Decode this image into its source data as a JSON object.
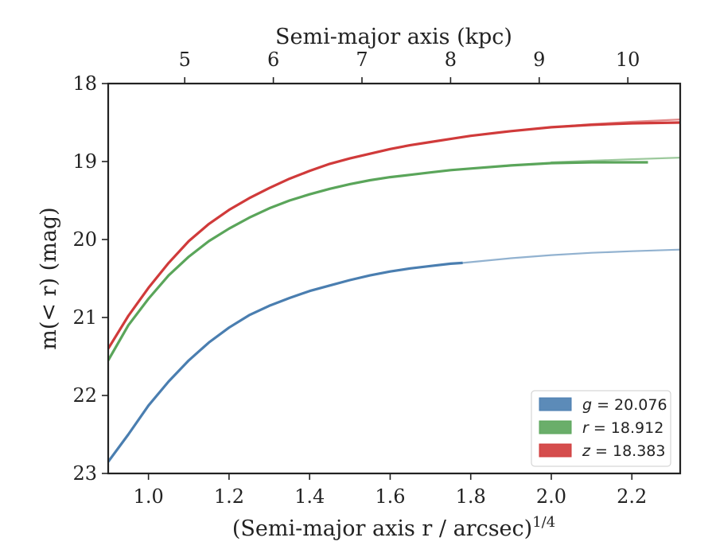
{
  "chart_data": {
    "type": "line",
    "xlabel": "(Semi-major axis r / arcsec)",
    "xlabel_exponent": "1/4",
    "x2label": "Semi-major axis (kpc)",
    "ylabel": "m(< r) (mag)",
    "xlim": [
      0.9,
      2.32
    ],
    "ylim": [
      23,
      18
    ],
    "y_inverted": true,
    "grid": false,
    "legend_position": "lower-right",
    "xticks": [
      1.0,
      1.2,
      1.4,
      1.6,
      1.8,
      2.0,
      2.2
    ],
    "xtick_labels": [
      "1.0",
      "1.2",
      "1.4",
      "1.6",
      "1.8",
      "2.0",
      "2.2"
    ],
    "yticks": [
      18,
      19,
      20,
      21,
      22,
      23
    ],
    "ytick_labels": [
      "18",
      "19",
      "20",
      "21",
      "22",
      "23"
    ],
    "x2_ticks": [
      {
        "label": "5",
        "x": 1.09
      },
      {
        "label": "6",
        "x": 1.31
      },
      {
        "label": "7",
        "x": 1.53
      },
      {
        "label": "8",
        "x": 1.75
      },
      {
        "label": "9",
        "x": 1.97
      },
      {
        "label": "10",
        "x": 2.19
      }
    ],
    "series": [
      {
        "name": "g = 20.076",
        "band": "g",
        "mag": "20.076",
        "color": "#4a7eb0",
        "x": [
          0.9,
          0.95,
          1.0,
          1.05,
          1.1,
          1.15,
          1.2,
          1.25,
          1.3,
          1.35,
          1.4,
          1.45,
          1.5,
          1.55,
          1.6,
          1.65,
          1.7,
          1.75,
          1.78
        ],
        "y": [
          22.85,
          22.5,
          22.13,
          21.82,
          21.55,
          21.32,
          21.13,
          20.97,
          20.85,
          20.75,
          20.66,
          20.59,
          20.52,
          20.46,
          20.41,
          20.37,
          20.34,
          20.31,
          20.3
        ],
        "extrap_x": [
          1.78,
          1.9,
          2.0,
          2.1,
          2.2,
          2.32
        ],
        "extrap_y": [
          20.3,
          20.24,
          20.2,
          20.17,
          20.15,
          20.13
        ]
      },
      {
        "name": "r = 18.912",
        "band": "r",
        "mag": "18.912",
        "color": "#5aa55a",
        "x": [
          0.9,
          0.95,
          1.0,
          1.05,
          1.1,
          1.15,
          1.2,
          1.25,
          1.3,
          1.35,
          1.4,
          1.45,
          1.5,
          1.55,
          1.6,
          1.65,
          1.7,
          1.75,
          1.8,
          1.9,
          2.0,
          2.1,
          2.2,
          2.24
        ],
        "y": [
          21.55,
          21.1,
          20.76,
          20.46,
          20.22,
          20.02,
          19.86,
          19.72,
          19.6,
          19.5,
          19.42,
          19.35,
          19.29,
          19.24,
          19.2,
          19.17,
          19.14,
          19.11,
          19.09,
          19.05,
          19.02,
          19.01,
          19.01,
          19.01
        ],
        "extrap_x": [
          2.0,
          2.1,
          2.2,
          2.32
        ],
        "extrap_y": [
          19.01,
          18.99,
          18.97,
          18.95
        ]
      },
      {
        "name": "z = 18.383",
        "band": "z",
        "mag": "18.383",
        "color": "#d03a3a",
        "x": [
          0.9,
          0.95,
          1.0,
          1.05,
          1.1,
          1.15,
          1.2,
          1.25,
          1.3,
          1.35,
          1.4,
          1.45,
          1.5,
          1.55,
          1.6,
          1.65,
          1.7,
          1.75,
          1.8,
          1.9,
          2.0,
          2.1,
          2.2,
          2.32
        ],
        "y": [
          21.4,
          20.98,
          20.62,
          20.3,
          20.02,
          19.8,
          19.62,
          19.47,
          19.34,
          19.22,
          19.12,
          19.03,
          18.96,
          18.9,
          18.84,
          18.79,
          18.75,
          18.71,
          18.67,
          18.61,
          18.56,
          18.53,
          18.51,
          18.5
        ],
        "extrap_x": [
          2.0,
          2.1,
          2.2,
          2.32
        ],
        "extrap_y": [
          18.56,
          18.52,
          18.49,
          18.46
        ]
      }
    ]
  }
}
